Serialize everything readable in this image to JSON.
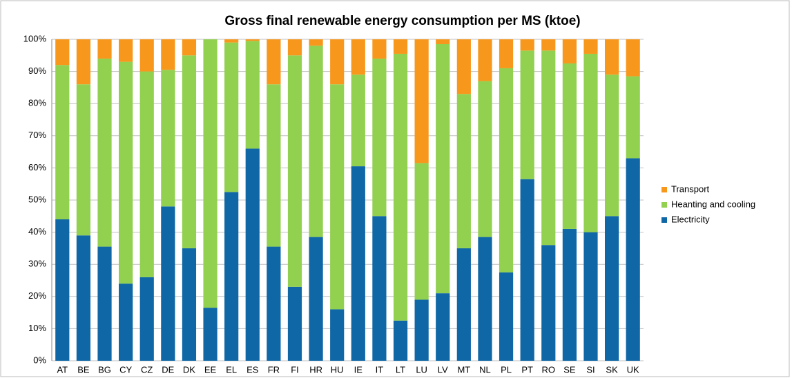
{
  "chart_data": {
    "type": "stacked_bar",
    "title": "Gross final renewable energy consumption per MS (ktoe)",
    "categories": [
      "AT",
      "BE",
      "BG",
      "CY",
      "CZ",
      "DE",
      "DK",
      "EE",
      "EL",
      "ES",
      "FR",
      "FI",
      "HR",
      "HU",
      "IE",
      "IT",
      "LT",
      "LU",
      "LV",
      "MT",
      "NL",
      "PL",
      "PT",
      "RO",
      "SE",
      "SI",
      "SK",
      "UK"
    ],
    "series": [
      {
        "name": "Electricity",
        "color": "#0f67a6",
        "values": [
          44,
          39,
          35.5,
          24,
          26,
          48,
          35,
          16.5,
          52.5,
          66,
          35.5,
          23,
          38.5,
          16,
          60.5,
          45,
          12.5,
          19,
          21,
          35,
          38.5,
          27.5,
          56.5,
          36,
          41,
          40,
          45,
          63
        ]
      },
      {
        "name": "Heanting and cooling",
        "color": "#92d050",
        "values": [
          48,
          47,
          58.5,
          69,
          64,
          42.5,
          60,
          83.5,
          46.5,
          33.5,
          50.5,
          72,
          59.5,
          70,
          28.5,
          49,
          83,
          42.5,
          77.5,
          48,
          48.5,
          63.5,
          40,
          60.5,
          51.5,
          55.5,
          44,
          25.5
        ]
      },
      {
        "name": "Transport",
        "color": "#f7981d",
        "values": [
          8,
          14,
          6,
          7,
          10,
          9.5,
          5,
          0,
          1,
          0.5,
          14,
          5,
          2,
          14,
          11,
          6,
          4.5,
          38.5,
          1.5,
          17,
          13,
          9,
          3.5,
          3.5,
          7.5,
          4.5,
          11,
          11.5
        ]
      }
    ],
    "ylim": [
      0,
      100
    ],
    "yticks": [
      {
        "value": 0,
        "label": "0%"
      },
      {
        "value": 10,
        "label": "10%"
      },
      {
        "value": 20,
        "label": "20%"
      },
      {
        "value": 30,
        "label": "30%"
      },
      {
        "value": 40,
        "label": "40%"
      },
      {
        "value": 50,
        "label": "50%"
      },
      {
        "value": 60,
        "label": "60%"
      },
      {
        "value": 70,
        "label": "70%"
      },
      {
        "value": 80,
        "label": "80%"
      },
      {
        "value": 90,
        "label": "90%"
      },
      {
        "value": 100,
        "label": "100%"
      }
    ],
    "grid": true,
    "legend": "right"
  }
}
